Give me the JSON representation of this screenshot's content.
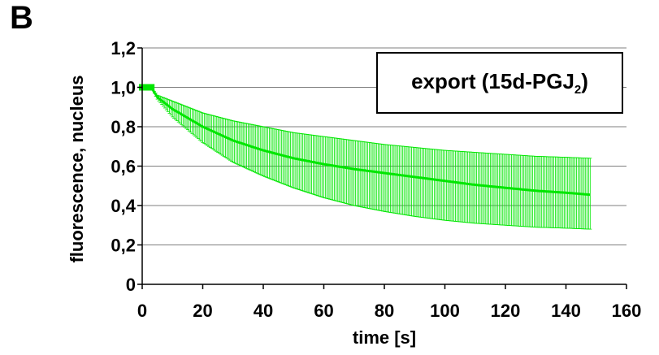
{
  "panel_label": "B",
  "legend": {
    "prefix": "export (15d-PGJ",
    "subscript": "2",
    "suffix": ")"
  },
  "chart_data": {
    "type": "line",
    "title": "",
    "xlabel": "time [s]",
    "ylabel": "fluorescence, nucleus",
    "xlim": [
      0,
      160
    ],
    "ylim": [
      0,
      1.2
    ],
    "x_ticks": [
      "0",
      "20",
      "40",
      "60",
      "80",
      "100",
      "120",
      "140",
      "160"
    ],
    "y_ticks": [
      "0",
      "0,2",
      "0,4",
      "0,6",
      "0,8",
      "1,0",
      "1,2"
    ],
    "grid": "horizontal",
    "color": "#00e600",
    "series": [
      {
        "x": [
          0,
          3,
          5,
          10,
          20,
          30,
          40,
          50,
          60,
          70,
          80,
          90,
          100,
          110,
          120,
          130,
          140,
          148
        ],
        "y": [
          1.0,
          1.0,
          0.95,
          0.89,
          0.8,
          0.73,
          0.68,
          0.64,
          0.61,
          0.585,
          0.565,
          0.545,
          0.525,
          0.505,
          0.49,
          0.475,
          0.465,
          0.455
        ],
        "err_low": [
          1.0,
          1.0,
          0.94,
          0.85,
          0.72,
          0.62,
          0.55,
          0.49,
          0.44,
          0.4,
          0.37,
          0.345,
          0.325,
          0.31,
          0.3,
          0.29,
          0.285,
          0.28
        ],
        "err_high": [
          1.0,
          1.0,
          0.96,
          0.93,
          0.87,
          0.83,
          0.8,
          0.77,
          0.75,
          0.73,
          0.71,
          0.695,
          0.68,
          0.67,
          0.66,
          0.65,
          0.645,
          0.64
        ]
      }
    ]
  }
}
